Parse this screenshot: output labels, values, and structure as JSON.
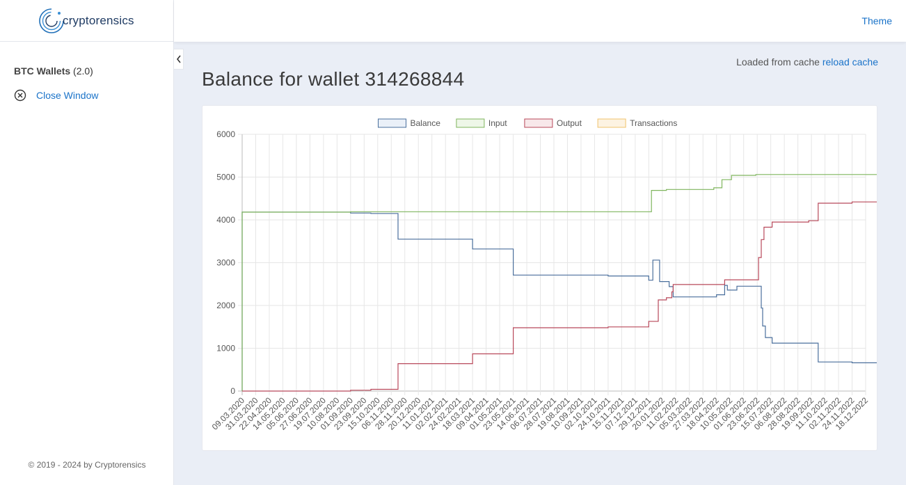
{
  "brand": {
    "name": "cryptorensics"
  },
  "topbar": {
    "theme_label": "Theme"
  },
  "sidebar": {
    "section_title": "BTC Wallets",
    "section_version": "(2.0)",
    "close_label": "Close Window",
    "copyright": "© 2019 - 2024 by Cryptorensics"
  },
  "main": {
    "cache_text": "Loaded from cache",
    "reload_label": "reload cache",
    "title": "Balance for wallet 314268844"
  },
  "colors": {
    "balance": "#4a6f9c",
    "input": "#7fb55d",
    "output": "#b8485a",
    "transactions": "#f0c36c",
    "link": "#1a73c9"
  },
  "chart_data": {
    "type": "line",
    "step": true,
    "ylim": [
      0,
      6000
    ],
    "yticks": [
      0,
      1000,
      2000,
      3000,
      4000,
      5000,
      6000
    ],
    "grid": true,
    "legend_position": "top",
    "x_ticks": [
      "09.03.2020",
      "31.03.2020",
      "22.04.2020",
      "14.05.2020",
      "05.06.2020",
      "27.06.2020",
      "19.07.2020",
      "10.08.2020",
      "01.09.2020",
      "23.09.2020",
      "15.10.2020",
      "06.11.2020",
      "28.11.2020",
      "20.12.2020",
      "11.01.2021",
      "02.02.2021",
      "24.02.2021",
      "18.03.2021",
      "09.04.2021",
      "01.05.2021",
      "23.05.2021",
      "14.06.2021",
      "06.07.2021",
      "28.07.2021",
      "19.08.2021",
      "10.09.2021",
      "02.10.2021",
      "24.10.2021",
      "15.11.2021",
      "07.12.2021",
      "29.12.2021",
      "20.01.2022",
      "11.02.2022",
      "05.03.2022",
      "27.03.2022",
      "18.04.2022",
      "10.05.2022",
      "01.06.2022",
      "23.06.2022",
      "15.07.2022",
      "06.08.2022",
      "28.08.2022",
      "19.09.2022",
      "11.10.2022",
      "02.11.2022",
      "24.11.2022",
      "18.12.2022"
    ],
    "series": [
      {
        "name": "Balance",
        "points": [
          [
            0,
            0
          ],
          [
            0,
            4180
          ],
          [
            8,
            4180
          ],
          [
            8,
            4160
          ],
          [
            9.5,
            4160
          ],
          [
            9.5,
            4150
          ],
          [
            11.5,
            4150
          ],
          [
            11.5,
            3550
          ],
          [
            17,
            3550
          ],
          [
            17,
            3320
          ],
          [
            20,
            3320
          ],
          [
            20,
            2710
          ],
          [
            27,
            2710
          ],
          [
            27,
            2690
          ],
          [
            30,
            2690
          ],
          [
            30,
            2590
          ],
          [
            30.3,
            2590
          ],
          [
            30.3,
            3060
          ],
          [
            30.8,
            3060
          ],
          [
            30.8,
            2560
          ],
          [
            31.5,
            2560
          ],
          [
            31.5,
            2440
          ],
          [
            31.8,
            2440
          ],
          [
            31.8,
            2200
          ],
          [
            35,
            2200
          ],
          [
            35,
            2250
          ],
          [
            35.6,
            2250
          ],
          [
            35.6,
            2470
          ],
          [
            35.8,
            2470
          ],
          [
            35.8,
            2360
          ],
          [
            36.5,
            2360
          ],
          [
            36.5,
            2450
          ],
          [
            38.3,
            2450
          ],
          [
            38.3,
            1940
          ],
          [
            38.4,
            1940
          ],
          [
            38.4,
            1520
          ],
          [
            38.6,
            1520
          ],
          [
            38.6,
            1250
          ],
          [
            39.1,
            1250
          ],
          [
            39.1,
            1120
          ],
          [
            42.5,
            1120
          ],
          [
            42.5,
            680
          ],
          [
            45,
            680
          ],
          [
            45,
            660
          ],
          [
            46.9,
            660
          ],
          [
            46.9,
            0
          ]
        ]
      },
      {
        "name": "Input",
        "points": [
          [
            0,
            0
          ],
          [
            0,
            4180
          ],
          [
            8,
            4180
          ],
          [
            8,
            4190
          ],
          [
            30.2,
            4190
          ],
          [
            30.2,
            4690
          ],
          [
            31.3,
            4690
          ],
          [
            31.3,
            4710
          ],
          [
            34.8,
            4710
          ],
          [
            34.8,
            4750
          ],
          [
            35.4,
            4750
          ],
          [
            35.4,
            4940
          ],
          [
            36.1,
            4940
          ],
          [
            36.1,
            5040
          ],
          [
            37.9,
            5040
          ],
          [
            37.9,
            5060
          ],
          [
            46.9,
            5060
          ]
        ]
      },
      {
        "name": "Output",
        "points": [
          [
            0,
            0
          ],
          [
            8,
            0
          ],
          [
            8,
            20
          ],
          [
            9.5,
            20
          ],
          [
            9.5,
            40
          ],
          [
            11.5,
            40
          ],
          [
            11.5,
            640
          ],
          [
            17,
            640
          ],
          [
            17,
            870
          ],
          [
            20,
            870
          ],
          [
            20,
            1480
          ],
          [
            27,
            1480
          ],
          [
            27,
            1500
          ],
          [
            30,
            1500
          ],
          [
            30,
            1630
          ],
          [
            30.7,
            1630
          ],
          [
            30.7,
            2130
          ],
          [
            31.3,
            2130
          ],
          [
            31.3,
            2180
          ],
          [
            31.7,
            2180
          ],
          [
            31.7,
            2320
          ],
          [
            31.8,
            2320
          ],
          [
            31.8,
            2490
          ],
          [
            35.6,
            2490
          ],
          [
            35.6,
            2600
          ],
          [
            38.1,
            2600
          ],
          [
            38.1,
            3120
          ],
          [
            38.3,
            3120
          ],
          [
            38.3,
            3540
          ],
          [
            38.5,
            3540
          ],
          [
            38.5,
            3830
          ],
          [
            39.1,
            3830
          ],
          [
            39.1,
            3950
          ],
          [
            41.8,
            3950
          ],
          [
            41.8,
            3980
          ],
          [
            42.5,
            3980
          ],
          [
            42.5,
            4390
          ],
          [
            45,
            4390
          ],
          [
            45,
            4420
          ],
          [
            46.9,
            4420
          ],
          [
            46.9,
            5060
          ]
        ]
      },
      {
        "name": "Transactions",
        "points": []
      }
    ]
  }
}
